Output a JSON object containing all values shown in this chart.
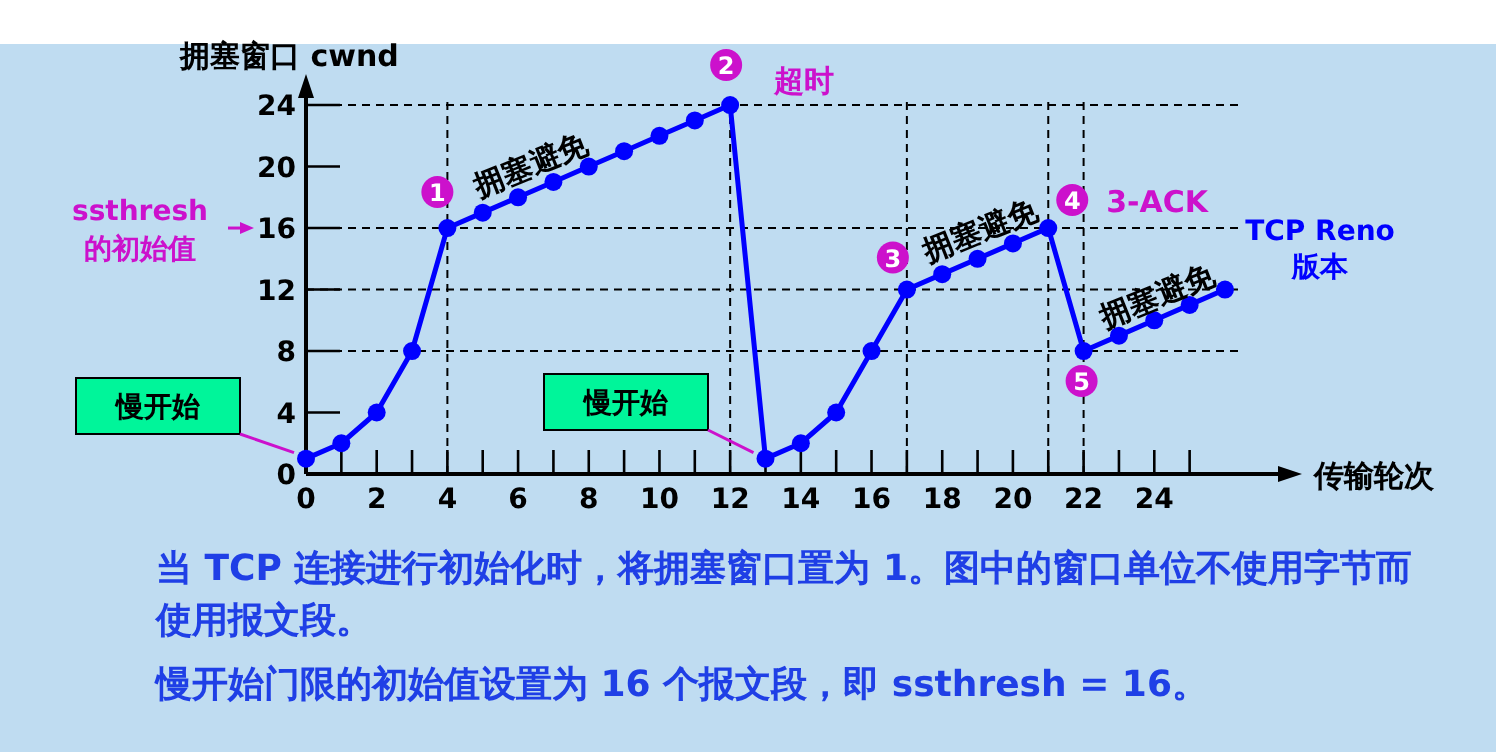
{
  "chart_data": {
    "type": "line",
    "ylabel": "拥塞窗口 cwnd",
    "xlabel": "传输轮次",
    "x": [
      0,
      1,
      2,
      3,
      4,
      5,
      6,
      7,
      8,
      9,
      10,
      11,
      12,
      13,
      14,
      15,
      16,
      17,
      18,
      19,
      20,
      21,
      22,
      23,
      24,
      25,
      26
    ],
    "series": [
      {
        "name": "TCP Reno 版本",
        "color": "#0000ff",
        "values": [
          1,
          2,
          4,
          8,
          16,
          17,
          18,
          19,
          20,
          21,
          22,
          23,
          24,
          1,
          2,
          4,
          8,
          12,
          13,
          14,
          15,
          16,
          8,
          9,
          10,
          11,
          12
        ]
      }
    ],
    "marker": "circle",
    "xlim": [
      0,
      27.5
    ],
    "ylim": [
      0,
      25.5
    ],
    "xticks": [
      0,
      {
        "value": 1,
        "label": null
      },
      2,
      {
        "value": 3,
        "label": null
      },
      4,
      {
        "value": 5,
        "label": null
      },
      6,
      {
        "value": 7,
        "label": null
      },
      8,
      {
        "value": 9,
        "label": null
      },
      10,
      {
        "value": 11,
        "label": null
      },
      12,
      {
        "value": 13,
        "label": null
      },
      14,
      {
        "value": 15,
        "label": null
      },
      16,
      {
        "value": 17,
        "label": null
      },
      18,
      {
        "value": 19,
        "label": null
      },
      20,
      {
        "value": 21,
        "label": null
      },
      22,
      {
        "value": 23,
        "label": null
      },
      24,
      {
        "value": 25,
        "label": null
      }
    ],
    "yticks": [
      0,
      4,
      8,
      12,
      16,
      20,
      24
    ],
    "ref_lines": [
      {
        "axis": "y",
        "value": 24,
        "line_style": "dashed"
      },
      {
        "axis": "y",
        "value": 16,
        "line_style": "dashed"
      },
      {
        "axis": "y",
        "value": 12,
        "line_style": "dashed"
      },
      {
        "axis": "y",
        "value": 8,
        "line_style": "dashed"
      },
      {
        "axis": "x",
        "value": 4,
        "line_style": "dashed"
      },
      {
        "axis": "x",
        "value": 12,
        "line_style": "dashed"
      },
      {
        "axis": "x",
        "value": 17,
        "line_style": "dashed"
      },
      {
        "axis": "x",
        "value": 21,
        "line_style": "dashed"
      },
      {
        "axis": "x",
        "value": 22,
        "line_style": "dashed"
      }
    ],
    "annotations": [
      {
        "text": "拥塞避免",
        "x": 6,
        "y": 18
      },
      {
        "text": "1",
        "x": 4,
        "y": 16
      },
      {
        "text": "2",
        "x": 12,
        "y": 24
      },
      {
        "text": "超时",
        "x": 12,
        "y": 24
      },
      {
        "text": "3",
        "x": 17,
        "y": 12
      },
      {
        "text": "拥塞避免",
        "x": 19,
        "y": 14
      },
      {
        "text": "4",
        "x": 21,
        "y": 16
      },
      {
        "text": "3-ACK",
        "x": 21,
        "y": 16
      },
      {
        "text": "5",
        "x": 22,
        "y": 8
      },
      {
        "text": "拥塞避免",
        "x": 24,
        "y": 10
      },
      "ssthresh 的初始值",
      "慢开始",
      "慢开始",
      "当 TCP 连接进行初始化时，将拥塞窗口置为 1。图中的窗口单位不使用字节而使用报文段。",
      "慢开始门限的初始值设置为 16 个报文段，即 ssthresh = 16。"
    ]
  }
}
